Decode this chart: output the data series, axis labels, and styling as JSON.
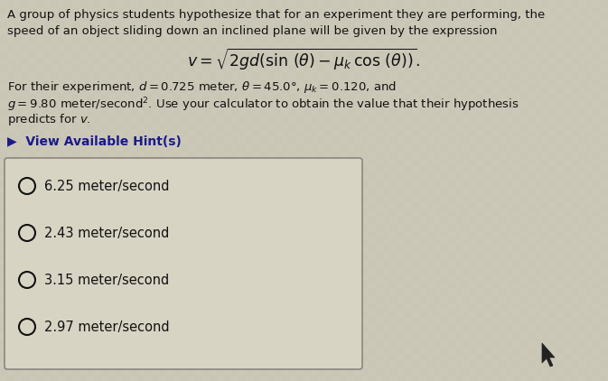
{
  "bg_color": "#ccc8b8",
  "box_bg_color": "#d8d4c4",
  "box_border_color": "#888880",
  "text_color": "#111111",
  "hint_color": "#1a1a8a",
  "paragraph1_line1": "A group of physics students hypothesize that for an experiment they are performing, the",
  "paragraph1_line2": "speed of an object sliding down an inclined plane will be given by the expression",
  "equation": "$v = \\sqrt{2gd(\\sin\\,(\\theta) - \\mu_k\\,\\cos\\,(\\theta))}.$",
  "p2_line1": "For their experiment, $d = 0.725$ meter, $\\theta = 45.0°$, $\\mu_k = 0.120$, and",
  "p2_line2": "$g = 9.80$ meter/second$^2$. Use your calculator to obtain the value that their hypothesis",
  "p2_line3": "predicts for $v$.",
  "hint_text": "▶  View Available Hint(s)",
  "options": [
    "6.25 meter/second",
    "2.43 meter/second",
    "3.15 meter/second",
    "2.97 meter/second"
  ],
  "fig_width": 6.73,
  "fig_height": 4.22,
  "dpi": 100
}
